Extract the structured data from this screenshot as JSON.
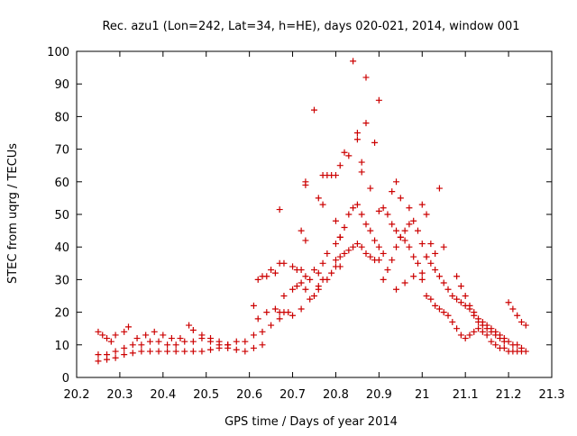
{
  "chart_data": {
    "type": "scatter",
    "title": "Rec. azu1 (Lon=242, Lat=34, h=HE), days 020-021, 2014, window 001",
    "xlabel": "GPS time / Days of year 2014",
    "ylabel": "STEC from uqrg / TECUs",
    "xlim": [
      20.2,
      21.3
    ],
    "ylim": [
      0,
      100
    ],
    "x_ticks": [
      "20.2",
      "20.3",
      "20.4",
      "20.5",
      "20.6",
      "20.7",
      "20.8",
      "20.9",
      "21",
      "21.1",
      "21.2",
      "21.3"
    ],
    "y_ticks": [
      "0",
      "10",
      "20",
      "30",
      "40",
      "50",
      "60",
      "70",
      "80",
      "90",
      "100"
    ],
    "grid": false,
    "legend": "none",
    "marker": "plus",
    "color": "#cc0000",
    "series": [
      {
        "values": [
          [
            20.25,
            14
          ],
          [
            20.26,
            13
          ],
          [
            20.27,
            12
          ],
          [
            20.28,
            11
          ],
          [
            20.29,
            13
          ],
          [
            20.31,
            14
          ],
          [
            20.32,
            15.5
          ],
          [
            20.34,
            12
          ],
          [
            20.36,
            13
          ],
          [
            20.38,
            14
          ],
          [
            20.4,
            13
          ],
          [
            20.42,
            12
          ],
          [
            20.44,
            12
          ],
          [
            20.46,
            16
          ],
          [
            20.47,
            14.5
          ],
          [
            20.49,
            13
          ],
          [
            20.51,
            12
          ],
          [
            20.53,
            11
          ],
          [
            20.55,
            10
          ],
          [
            20.25,
            5
          ],
          [
            20.27,
            5.5
          ],
          [
            20.29,
            6
          ],
          [
            20.31,
            7
          ],
          [
            20.33,
            7.5
          ],
          [
            20.35,
            8
          ],
          [
            20.37,
            8
          ],
          [
            20.39,
            8
          ],
          [
            20.41,
            8
          ],
          [
            20.43,
            8
          ],
          [
            20.45,
            8
          ],
          [
            20.47,
            8
          ],
          [
            20.49,
            8
          ],
          [
            20.51,
            8.5
          ],
          [
            20.53,
            9
          ],
          [
            20.55,
            9
          ],
          [
            20.57,
            8.5
          ],
          [
            20.59,
            8
          ],
          [
            20.61,
            9
          ],
          [
            20.63,
            10
          ],
          [
            20.25,
            7
          ],
          [
            20.27,
            7
          ],
          [
            20.29,
            8
          ],
          [
            20.31,
            9
          ],
          [
            20.33,
            10
          ],
          [
            20.35,
            10
          ],
          [
            20.37,
            11
          ],
          [
            20.39,
            11
          ],
          [
            20.41,
            10
          ],
          [
            20.43,
            10
          ],
          [
            20.45,
            11
          ],
          [
            20.47,
            11
          ],
          [
            20.49,
            12
          ],
          [
            20.51,
            11
          ],
          [
            20.53,
            10
          ],
          [
            20.55,
            10
          ],
          [
            20.57,
            11
          ],
          [
            20.59,
            11
          ],
          [
            20.61,
            13
          ],
          [
            20.61,
            22
          ],
          [
            20.62,
            30
          ],
          [
            20.63,
            31
          ],
          [
            20.64,
            31
          ],
          [
            20.65,
            33
          ],
          [
            20.66,
            32
          ],
          [
            20.67,
            35
          ],
          [
            20.68,
            35
          ],
          [
            20.7,
            34
          ],
          [
            20.71,
            33
          ],
          [
            20.72,
            33
          ],
          [
            20.73,
            31
          ],
          [
            20.74,
            30
          ],
          [
            20.75,
            33
          ],
          [
            20.76,
            32
          ],
          [
            20.77,
            35
          ],
          [
            20.62,
            18
          ],
          [
            20.64,
            20
          ],
          [
            20.66,
            21
          ],
          [
            20.67,
            20
          ],
          [
            20.68,
            20
          ],
          [
            20.69,
            20
          ],
          [
            20.7,
            19
          ],
          [
            20.72,
            21
          ],
          [
            20.74,
            24
          ],
          [
            20.76,
            27
          ],
          [
            20.78,
            30
          ],
          [
            20.79,
            32
          ],
          [
            20.8,
            34
          ],
          [
            20.81,
            34
          ],
          [
            20.63,
            14
          ],
          [
            20.65,
            16
          ],
          [
            20.67,
            18
          ],
          [
            20.68,
            25
          ],
          [
            20.7,
            27
          ],
          [
            20.71,
            28
          ],
          [
            20.72,
            29
          ],
          [
            20.73,
            27
          ],
          [
            20.75,
            25
          ],
          [
            20.76,
            28
          ],
          [
            20.77,
            30
          ],
          [
            20.67,
            51.5
          ],
          [
            20.72,
            45
          ],
          [
            20.73,
            42
          ],
          [
            20.73,
            59
          ],
          [
            20.73,
            60
          ],
          [
            20.75,
            82
          ],
          [
            20.76,
            55
          ],
          [
            20.77,
            53
          ],
          [
            20.77,
            62
          ],
          [
            20.78,
            62
          ],
          [
            20.79,
            62
          ],
          [
            20.8,
            48
          ],
          [
            20.8,
            62
          ],
          [
            20.81,
            43
          ],
          [
            20.81,
            65
          ],
          [
            20.82,
            69
          ],
          [
            20.83,
            68
          ],
          [
            20.84,
            97
          ],
          [
            20.85,
            75
          ],
          [
            20.85,
            73
          ],
          [
            20.86,
            63
          ],
          [
            20.86,
            66
          ],
          [
            20.87,
            92
          ],
          [
            20.87,
            78
          ],
          [
            20.88,
            58
          ],
          [
            20.89,
            72
          ],
          [
            20.9,
            85
          ],
          [
            20.78,
            38
          ],
          [
            20.8,
            41
          ],
          [
            20.81,
            43
          ],
          [
            20.82,
            46
          ],
          [
            20.83,
            50
          ],
          [
            20.84,
            52
          ],
          [
            20.85,
            53
          ],
          [
            20.86,
            50
          ],
          [
            20.87,
            47
          ],
          [
            20.88,
            45
          ],
          [
            20.89,
            42
          ],
          [
            20.9,
            40
          ],
          [
            20.91,
            38
          ],
          [
            20.8,
            36
          ],
          [
            20.81,
            37
          ],
          [
            20.82,
            38
          ],
          [
            20.83,
            39
          ],
          [
            20.84,
            40
          ],
          [
            20.85,
            41
          ],
          [
            20.86,
            40
          ],
          [
            20.87,
            38
          ],
          [
            20.88,
            37
          ],
          [
            20.89,
            36
          ],
          [
            20.9,
            36
          ],
          [
            20.9,
            51
          ],
          [
            20.91,
            52
          ],
          [
            20.92,
            50
          ],
          [
            20.93,
            47
          ],
          [
            20.94,
            45
          ],
          [
            20.95,
            43
          ],
          [
            20.96,
            42
          ],
          [
            20.97,
            40
          ],
          [
            20.98,
            37
          ],
          [
            20.99,
            35
          ],
          [
            21.0,
            32
          ],
          [
            20.91,
            30
          ],
          [
            20.92,
            33
          ],
          [
            20.93,
            36
          ],
          [
            20.94,
            40
          ],
          [
            20.95,
            43
          ],
          [
            20.96,
            45
          ],
          [
            20.97,
            47
          ],
          [
            20.98,
            48
          ],
          [
            20.99,
            45
          ],
          [
            21.0,
            41
          ],
          [
            21.01,
            37
          ],
          [
            20.93,
            57
          ],
          [
            20.94,
            60
          ],
          [
            20.95,
            55
          ],
          [
            20.97,
            52
          ],
          [
            21.0,
            53
          ],
          [
            21.01,
            50
          ],
          [
            21.02,
            41
          ],
          [
            21.03,
            38
          ],
          [
            21.04,
            58
          ],
          [
            21.05,
            40
          ],
          [
            20.94,
            27
          ],
          [
            20.96,
            29
          ],
          [
            20.98,
            31
          ],
          [
            21.0,
            30
          ],
          [
            21.01,
            25
          ],
          [
            21.02,
            24
          ],
          [
            21.03,
            22
          ],
          [
            21.04,
            21
          ],
          [
            21.05,
            20
          ],
          [
            21.06,
            19
          ],
          [
            21.07,
            17
          ],
          [
            21.08,
            15
          ],
          [
            21.09,
            13
          ],
          [
            21.1,
            12
          ],
          [
            21.11,
            13
          ],
          [
            21.12,
            14
          ],
          [
            21.13,
            15
          ],
          [
            21.14,
            14
          ],
          [
            21.15,
            13
          ],
          [
            21.16,
            11
          ],
          [
            21.17,
            10
          ],
          [
            21.18,
            9
          ],
          [
            21.19,
            9
          ],
          [
            21.2,
            8
          ],
          [
            21.21,
            8
          ],
          [
            21.22,
            8
          ],
          [
            21.23,
            8
          ],
          [
            21.24,
            8
          ],
          [
            21.01,
            37
          ],
          [
            21.02,
            35
          ],
          [
            21.03,
            33
          ],
          [
            21.04,
            31
          ],
          [
            21.05,
            29
          ],
          [
            21.06,
            27
          ],
          [
            21.07,
            25
          ],
          [
            21.08,
            24
          ],
          [
            21.09,
            23
          ],
          [
            21.1,
            22
          ],
          [
            21.11,
            21
          ],
          [
            21.12,
            20
          ],
          [
            21.13,
            18
          ],
          [
            21.14,
            17
          ],
          [
            21.15,
            16
          ],
          [
            21.16,
            15
          ],
          [
            21.17,
            14
          ],
          [
            21.18,
            13
          ],
          [
            21.19,
            12
          ],
          [
            21.2,
            11
          ],
          [
            21.21,
            10
          ],
          [
            21.22,
            10
          ],
          [
            21.23,
            9
          ],
          [
            21.08,
            31
          ],
          [
            21.09,
            28
          ],
          [
            21.1,
            25
          ],
          [
            21.11,
            22
          ],
          [
            21.12,
            19
          ],
          [
            21.13,
            17
          ],
          [
            21.14,
            16
          ],
          [
            21.15,
            15
          ],
          [
            21.16,
            14
          ],
          [
            21.17,
            13
          ],
          [
            21.18,
            12
          ],
          [
            21.19,
            11
          ],
          [
            21.2,
            23
          ],
          [
            21.21,
            21
          ],
          [
            21.22,
            19
          ],
          [
            21.23,
            17
          ],
          [
            21.24,
            16
          ]
        ]
      }
    ]
  }
}
